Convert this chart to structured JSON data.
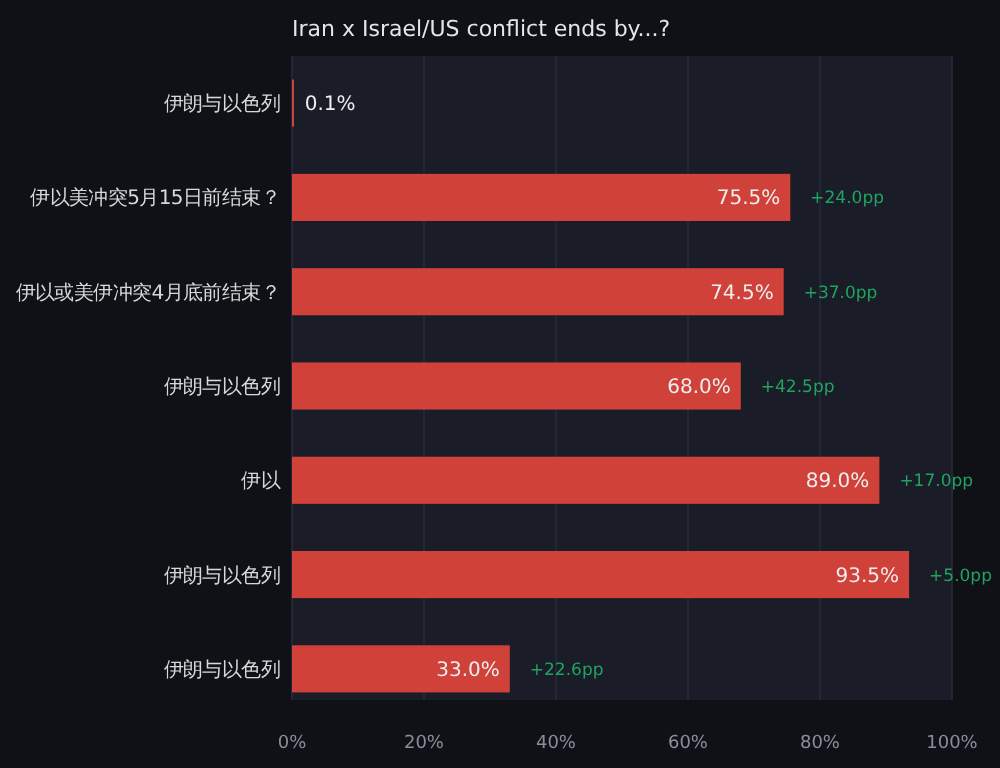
{
  "chart_data": {
    "type": "bar",
    "orientation": "horizontal",
    "title": "Iran x Israel/US conflict ends by...?",
    "categories": [
      "伊朗与以色列",
      "伊以美冲突5月15日前结束？",
      "伊以或美伊冲突4月底前结束？",
      "伊朗与以色列",
      "伊以",
      "伊朗与以色列",
      "伊朗与以色列"
    ],
    "values": [
      0.1,
      75.5,
      74.5,
      68.0,
      89.0,
      93.5,
      33.0
    ],
    "value_labels": [
      "0.1%",
      "75.5%",
      "74.5%",
      "68.0%",
      "89.0%",
      "93.5%",
      "33.0%"
    ],
    "color": "#d0413a",
    "xlim": [
      0,
      100
    ],
    "xticks": [
      {
        "value": 0,
        "label": "0%"
      },
      {
        "value": 20,
        "label": "20%"
      },
      {
        "value": 40,
        "label": "40%"
      },
      {
        "value": 60,
        "label": "60%"
      },
      {
        "value": 80,
        "label": "80%"
      },
      {
        "value": 100,
        "label": "100%"
      }
    ],
    "grid": "x",
    "annotations": [
      "+24.0pp",
      "+37.0pp",
      "+42.5pp",
      "+17.0pp",
      "+5.0pp",
      "+22.6pp"
    ]
  }
}
